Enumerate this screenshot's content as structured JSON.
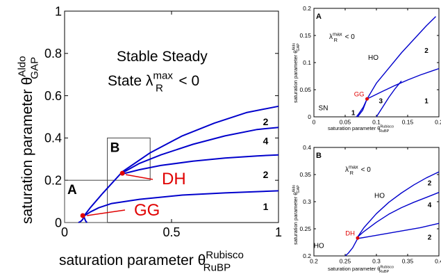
{
  "chart_data": [
    {
      "id": "main",
      "type": "line",
      "xlabel": "saturation parameter θ",
      "xlabel_sup": "Rubisco",
      "xlabel_sub": "RuBP",
      "ylabel": "saturation parameter θ",
      "ylabel_sup": "Aldo",
      "ylabel_sub": "GAP",
      "xlim": [
        0,
        1
      ],
      "ylim": [
        0,
        1
      ],
      "xticks": [
        0,
        0.5,
        1
      ],
      "xtick_labels": [
        "0",
        "0.5",
        "1"
      ],
      "yticks": [
        0,
        0.2,
        0.4,
        0.6,
        0.8,
        1
      ],
      "ytick_labels": [
        "0",
        "0.2",
        "0.4",
        "0.6",
        "0.8",
        "1"
      ],
      "annotation_line1": "Stable Steady",
      "annotation_line2_pre": "State λ",
      "annotation_line2_sup": "max",
      "annotation_line2_sub": "R",
      "annotation_line2_post": " < 0",
      "region_labels": [
        {
          "text": "2",
          "x": 0.94,
          "y": 0.46
        },
        {
          "text": "4",
          "x": 0.94,
          "y": 0.37
        },
        {
          "text": "2",
          "x": 0.94,
          "y": 0.21
        },
        {
          "text": "1",
          "x": 0.94,
          "y": 0.06
        }
      ],
      "curve_color": "#0000cc",
      "series": [
        {
          "x": [
            0.09,
            0.12,
            0.18,
            0.27,
            0.4,
            0.55,
            0.7,
            0.85,
            1.0
          ],
          "y": [
            0.03,
            0.07,
            0.14,
            0.24,
            0.33,
            0.41,
            0.47,
            0.52,
            0.55
          ]
        },
        {
          "x": [
            0.27,
            0.35,
            0.45,
            0.6,
            0.75,
            0.9,
            1.0
          ],
          "y": [
            0.235,
            0.28,
            0.32,
            0.37,
            0.41,
            0.44,
            0.45
          ]
        },
        {
          "x": [
            0.27,
            0.35,
            0.45,
            0.6,
            0.75,
            0.9,
            1.0
          ],
          "y": [
            0.23,
            0.25,
            0.27,
            0.29,
            0.305,
            0.315,
            0.32
          ]
        },
        {
          "x": [
            0.09,
            0.12,
            0.16,
            0.22,
            0.35,
            0.55,
            0.75,
            1.0
          ],
          "y": [
            0.03,
            0.05,
            0.07,
            0.09,
            0.11,
            0.13,
            0.14,
            0.15
          ]
        },
        {
          "x": [
            0.09,
            0.085,
            0.075,
            0.065
          ],
          "y": [
            0.03,
            0.015,
            0.005,
            0
          ]
        },
        {
          "x": [
            0.09,
            0.095,
            0.1,
            0.105
          ],
          "y": [
            0.03,
            0.015,
            0.005,
            0
          ]
        }
      ],
      "zoom_boxes": [
        {
          "label": "A",
          "x": [
            0.0,
            0.2
          ],
          "y": [
            0.0,
            0.2
          ]
        },
        {
          "label": "B",
          "x": [
            0.2,
            0.4
          ],
          "y": [
            0.2,
            0.4
          ]
        }
      ],
      "points": [
        {
          "name": "DH",
          "x": 0.27,
          "y": 0.233,
          "color": "#e00000"
        },
        {
          "name": "GG",
          "x": 0.085,
          "y": 0.033,
          "color": "#e00000"
        }
      ]
    },
    {
      "id": "inset-a",
      "type": "line",
      "panel_label": "A",
      "xlabel": "saturation parameter θ",
      "xlabel_sup": "Rubisco",
      "xlabel_sub": "RuBP",
      "ylabel": "saturation parameter θ",
      "ylabel_sup": "Aldo",
      "ylabel_sub": "GAP",
      "xlim": [
        0,
        0.2
      ],
      "ylim": [
        0,
        0.2
      ],
      "xticks": [
        0,
        0.05,
        0.1,
        0.15,
        0.2
      ],
      "xtick_labels": [
        "0",
        "0.05",
        "0.1",
        "0.15",
        "0.2"
      ],
      "yticks": [
        0,
        0.05,
        0.1,
        0.15,
        0.2
      ],
      "ytick_labels": [
        "0",
        "0.05",
        "0.1",
        "0.15",
        "0.2"
      ],
      "annotation_pre": "λ",
      "annotation_sup": "max",
      "annotation_sub": "R",
      "annotation_post": " < 0",
      "region_labels": [
        {
          "text": "HO",
          "x": 0.095,
          "y": 0.105
        },
        {
          "text": "2",
          "x": 0.18,
          "y": 0.118
        },
        {
          "text": "3",
          "x": 0.107,
          "y": 0.025
        },
        {
          "text": "1",
          "x": 0.18,
          "y": 0.025
        },
        {
          "text": "SN",
          "x": 0.015,
          "y": 0.012
        },
        {
          "text": "1",
          "x": 0.063,
          "y": 0.003
        }
      ],
      "series": [
        {
          "x": [
            0.07,
            0.078,
            0.085,
            0.1,
            0.12,
            0.14,
            0.16,
            0.18,
            0.195
          ],
          "y": [
            0.0,
            0.012,
            0.033,
            0.062,
            0.09,
            0.118,
            0.143,
            0.168,
            0.185
          ]
        },
        {
          "x": [
            0.085,
            0.11,
            0.13,
            0.15,
            0.17,
            0.19,
            0.2
          ],
          "y": [
            0.033,
            0.047,
            0.058,
            0.068,
            0.077,
            0.085,
            0.089
          ]
        },
        {
          "x": [
            0.1,
            0.11,
            0.12,
            0.13,
            0.14
          ],
          "y": [
            0.0,
            0.018,
            0.036,
            0.052,
            0.066
          ]
        },
        {
          "x": [
            0.085,
            0.079,
            0.072,
            0.068
          ],
          "y": [
            0.033,
            0.018,
            0.006,
            0.0
          ]
        }
      ],
      "points": [
        {
          "name": "GG",
          "x": 0.085,
          "y": 0.033,
          "color": "#e00000"
        }
      ]
    },
    {
      "id": "inset-b",
      "type": "line",
      "panel_label": "B",
      "xlabel": "saturation parameter θ",
      "xlabel_sup": "Rubisco",
      "xlabel_sub": "RuBP",
      "ylabel": "saturation parameter θ",
      "ylabel_sup": "Aldo",
      "ylabel_sub": "GAP",
      "xlim": [
        0.2,
        0.4
      ],
      "ylim": [
        0.2,
        0.4
      ],
      "xticks": [
        0.2,
        0.25,
        0.3,
        0.35,
        0.4
      ],
      "xtick_labels": [
        "0.2",
        "0.25",
        "0.3",
        "0.35",
        "0.4"
      ],
      "yticks": [
        0.2,
        0.25,
        0.3,
        0.35,
        0.4
      ],
      "ytick_labels": [
        "0.2",
        "0.25",
        "0.3",
        "0.35",
        "0.4"
      ],
      "annotation_pre": "λ",
      "annotation_sup": "max",
      "annotation_sub": "R",
      "annotation_post": " < 0",
      "region_labels": [
        {
          "text": "HO",
          "x": 0.305,
          "y": 0.307
        },
        {
          "text": "2",
          "x": 0.385,
          "y": 0.33
        },
        {
          "text": "4",
          "x": 0.385,
          "y": 0.29
        },
        {
          "text": "2",
          "x": 0.385,
          "y": 0.23
        },
        {
          "text": "HO",
          "x": 0.208,
          "y": 0.215
        }
      ],
      "series": [
        {
          "x": [
            0.27,
            0.28,
            0.3,
            0.32,
            0.34,
            0.36,
            0.38,
            0.4
          ],
          "y": [
            0.235,
            0.252,
            0.278,
            0.299,
            0.316,
            0.331,
            0.344,
            0.355
          ]
        },
        {
          "x": [
            0.27,
            0.28,
            0.3,
            0.32,
            0.34,
            0.36,
            0.38,
            0.4
          ],
          "y": [
            0.235,
            0.245,
            0.262,
            0.277,
            0.289,
            0.299,
            0.308,
            0.317
          ]
        },
        {
          "x": [
            0.27,
            0.29,
            0.31,
            0.33,
            0.35,
            0.37,
            0.4
          ],
          "y": [
            0.232,
            0.236,
            0.24,
            0.244,
            0.248,
            0.252,
            0.26
          ]
        },
        {
          "x": [
            0.27,
            0.262,
            0.255,
            0.25
          ],
          "y": [
            0.232,
            0.215,
            0.205,
            0.2
          ]
        }
      ],
      "points": [
        {
          "name": "DH",
          "x": 0.27,
          "y": 0.233,
          "color": "#e00000"
        }
      ]
    }
  ]
}
